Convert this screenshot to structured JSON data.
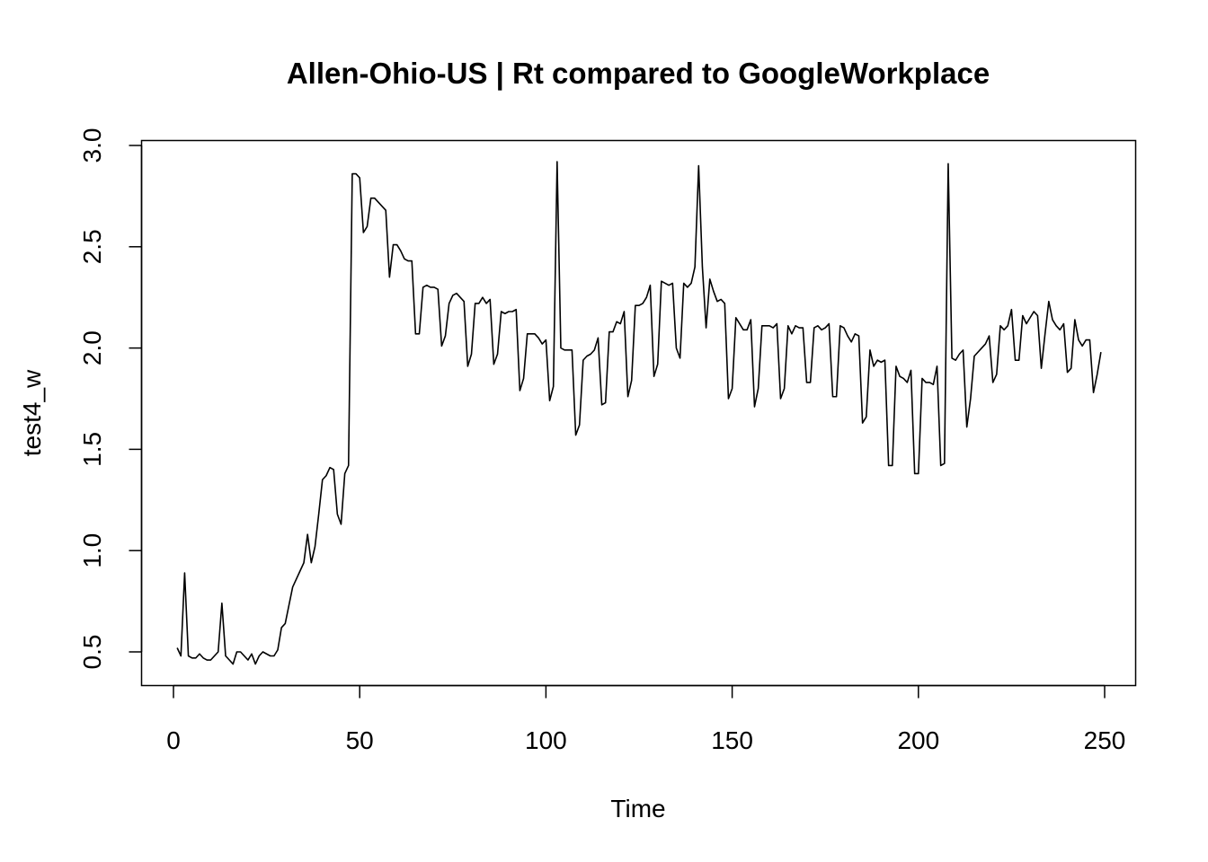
{
  "chart_data": {
    "type": "line",
    "title": "Allen-Ohio-US | Rt compared to GoogleWorkplace",
    "xlabel": "Time",
    "ylabel": "test4_w",
    "xlim": [
      0,
      250
    ],
    "ylim": [
      0.35,
      3.02
    ],
    "x_ticks": [
      0,
      50,
      100,
      150,
      200,
      250
    ],
    "y_ticks": [
      0.5,
      1.0,
      1.5,
      2.0,
      2.5,
      3.0
    ],
    "x_tick_labels": [
      "0",
      "50",
      "100",
      "150",
      "200",
      "250"
    ],
    "y_tick_labels": [
      "0.5",
      "1.0",
      "1.5",
      "2.0",
      "2.5",
      "3.0"
    ],
    "x_start": 1,
    "series": [
      {
        "name": "test4_w",
        "values": [
          0.52,
          0.48,
          0.89,
          0.48,
          0.47,
          0.47,
          0.49,
          0.47,
          0.46,
          0.46,
          0.48,
          0.5,
          0.74,
          0.48,
          0.46,
          0.44,
          0.5,
          0.5,
          0.48,
          0.46,
          0.49,
          0.44,
          0.48,
          0.5,
          0.49,
          0.48,
          0.48,
          0.51,
          0.62,
          0.64,
          0.73,
          0.82,
          0.86,
          0.9,
          0.94,
          1.08,
          0.94,
          1.02,
          1.18,
          1.35,
          1.37,
          1.41,
          1.4,
          1.18,
          1.13,
          1.38,
          1.42,
          2.86,
          2.86,
          2.84,
          2.57,
          2.6,
          2.74,
          2.74,
          2.72,
          2.7,
          2.68,
          2.35,
          2.51,
          2.51,
          2.48,
          2.44,
          2.43,
          2.43,
          2.07,
          2.07,
          2.3,
          2.31,
          2.3,
          2.3,
          2.29,
          2.01,
          2.06,
          2.22,
          2.26,
          2.27,
          2.25,
          2.23,
          1.91,
          1.97,
          2.22,
          2.22,
          2.25,
          2.22,
          2.24,
          1.92,
          1.97,
          2.18,
          2.17,
          2.18,
          2.18,
          2.19,
          1.79,
          1.85,
          2.07,
          2.07,
          2.07,
          2.05,
          2.02,
          2.04,
          1.74,
          1.81,
          2.92,
          2.0,
          1.99,
          1.99,
          1.99,
          1.57,
          1.62,
          1.94,
          1.96,
          1.97,
          1.99,
          2.05,
          1.72,
          1.73,
          2.08,
          2.08,
          2.13,
          2.12,
          2.18,
          1.76,
          1.84,
          2.21,
          2.21,
          2.22,
          2.25,
          2.31,
          1.86,
          1.92,
          2.33,
          2.32,
          2.31,
          2.32,
          2.0,
          1.95,
          2.32,
          2.3,
          2.32,
          2.4,
          2.9,
          2.4,
          2.1,
          2.34,
          2.28,
          2.23,
          2.24,
          2.22,
          1.75,
          1.8,
          2.15,
          2.12,
          2.09,
          2.09,
          2.14,
          1.71,
          1.8,
          2.11,
          2.11,
          2.11,
          2.1,
          2.12,
          1.75,
          1.8,
          2.11,
          2.07,
          2.11,
          2.1,
          2.1,
          1.83,
          1.83,
          2.1,
          2.11,
          2.09,
          2.1,
          2.12,
          1.76,
          1.76,
          2.11,
          2.1,
          2.06,
          2.03,
          2.07,
          2.06,
          1.63,
          1.66,
          1.99,
          1.91,
          1.94,
          1.93,
          1.94,
          1.42,
          1.42,
          1.91,
          1.86,
          1.85,
          1.83,
          1.89,
          1.38,
          1.38,
          1.85,
          1.83,
          1.83,
          1.82,
          1.91,
          1.42,
          1.43,
          2.91,
          1.95,
          1.94,
          1.97,
          1.99,
          1.61,
          1.75,
          1.96,
          1.98,
          2.0,
          2.02,
          2.06,
          1.83,
          1.87,
          2.11,
          2.09,
          2.11,
          2.19,
          1.94,
          1.94,
          2.16,
          2.12,
          2.15,
          2.18,
          2.16,
          1.9,
          2.07,
          2.23,
          2.14,
          2.11,
          2.09,
          2.12,
          1.88,
          1.9,
          2.14,
          2.04,
          2.01,
          2.04,
          2.04,
          1.78,
          1.87,
          1.98
        ]
      }
    ]
  }
}
